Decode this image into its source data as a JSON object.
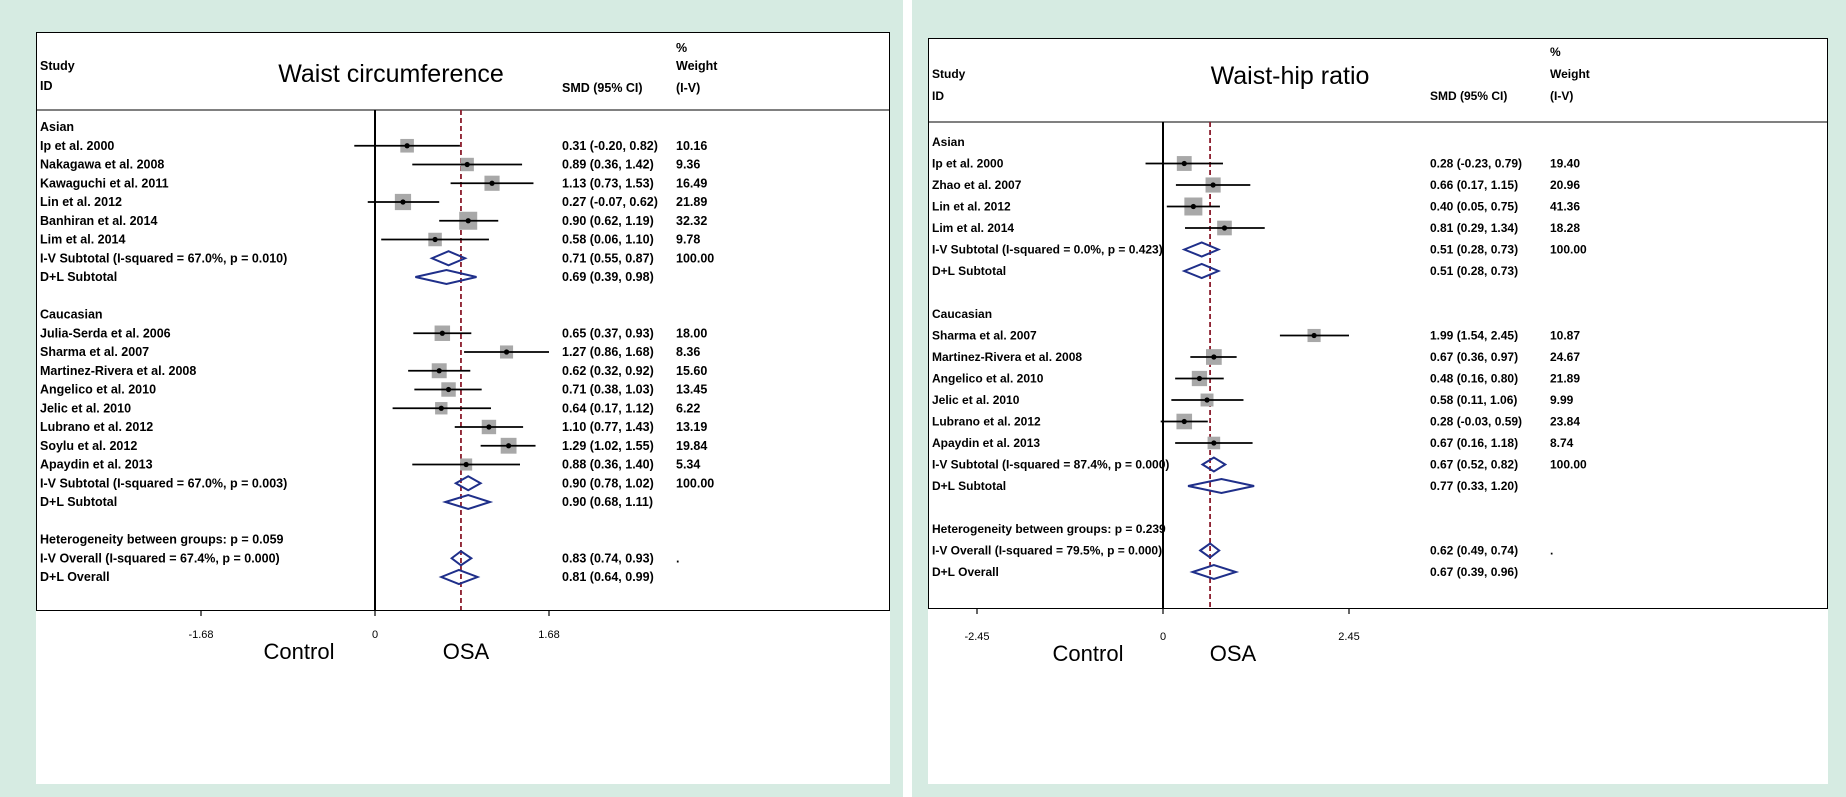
{
  "chart_data": [
    {
      "type": "forest",
      "title": "Waist circumference",
      "col_study": [
        "Study",
        "ID"
      ],
      "col_smd": "SMD (95% CI)",
      "col_weight": [
        "%",
        "Weight",
        "(I-V)"
      ],
      "xlim": [
        -1.68,
        1.68
      ],
      "ref_line": 0.83,
      "x_ticks": [
        {
          "value": -1.68,
          "label": "-1.68"
        },
        {
          "value": 0,
          "label": "0"
        },
        {
          "value": 1.68,
          "label": "1.68"
        }
      ],
      "side_labels": {
        "left": "Control",
        "right": "OSA"
      },
      "rows": [
        {
          "kind": "header",
          "label": "Asian"
        },
        {
          "kind": "study",
          "label": "Ip et al. 2000",
          "est": 0.31,
          "lo": -0.2,
          "hi": 0.82,
          "ci": "0.31 (-0.20, 0.82)",
          "weight": "10.16"
        },
        {
          "kind": "study",
          "label": "Nakagawa et al. 2008",
          "est": 0.89,
          "lo": 0.36,
          "hi": 1.42,
          "ci": "0.89 (0.36, 1.42)",
          "weight": "9.36"
        },
        {
          "kind": "study",
          "label": "Kawaguchi et al. 2011",
          "est": 1.13,
          "lo": 0.73,
          "hi": 1.53,
          "ci": "1.13 (0.73, 1.53)",
          "weight": "16.49"
        },
        {
          "kind": "study",
          "label": "Lin et al. 2012",
          "est": 0.27,
          "lo": -0.07,
          "hi": 0.62,
          "ci": "0.27 (-0.07, 0.62)",
          "weight": "21.89"
        },
        {
          "kind": "study",
          "label": "Banhiran et al. 2014",
          "est": 0.9,
          "lo": 0.62,
          "hi": 1.19,
          "ci": "0.90 (0.62, 1.19)",
          "weight": "32.32"
        },
        {
          "kind": "study",
          "label": "Lim et al. 2014",
          "est": 0.58,
          "lo": 0.06,
          "hi": 1.1,
          "ci": "0.58 (0.06, 1.10)",
          "weight": "9.78"
        },
        {
          "kind": "pooled",
          "label": "I-V Subtotal  (I-squared = 67.0%, p = 0.010)",
          "est": 0.71,
          "lo": 0.55,
          "hi": 0.87,
          "ci": "0.71 (0.55, 0.87)",
          "weight": "100.00"
        },
        {
          "kind": "pooled",
          "label": "D+L Subtotal",
          "est": 0.69,
          "lo": 0.39,
          "hi": 0.98,
          "ci": "0.69 (0.39, 0.98)",
          "weight": ""
        },
        {
          "kind": "gap"
        },
        {
          "kind": "header",
          "label": "Caucasian"
        },
        {
          "kind": "study",
          "label": "Julia-Serda et al. 2006",
          "est": 0.65,
          "lo": 0.37,
          "hi": 0.93,
          "ci": "0.65 (0.37, 0.93)",
          "weight": "18.00"
        },
        {
          "kind": "study",
          "label": "Sharma et al. 2007",
          "est": 1.27,
          "lo": 0.86,
          "hi": 1.68,
          "ci": "1.27 (0.86, 1.68)",
          "weight": "8.36"
        },
        {
          "kind": "study",
          "label": "Martinez-Rivera et al. 2008",
          "est": 0.62,
          "lo": 0.32,
          "hi": 0.92,
          "ci": "0.62 (0.32, 0.92)",
          "weight": "15.60"
        },
        {
          "kind": "study",
          "label": "Angelico et al. 2010",
          "est": 0.71,
          "lo": 0.38,
          "hi": 1.03,
          "ci": "0.71 (0.38, 1.03)",
          "weight": "13.45"
        },
        {
          "kind": "study",
          "label": "Jelic et al. 2010",
          "est": 0.64,
          "lo": 0.17,
          "hi": 1.12,
          "ci": "0.64 (0.17, 1.12)",
          "weight": "6.22"
        },
        {
          "kind": "study",
          "label": "Lubrano et al. 2012",
          "est": 1.1,
          "lo": 0.77,
          "hi": 1.43,
          "ci": "1.10 (0.77, 1.43)",
          "weight": "13.19"
        },
        {
          "kind": "study",
          "label": "Soylu et al. 2012",
          "est": 1.29,
          "lo": 1.02,
          "hi": 1.55,
          "ci": "1.29 (1.02, 1.55)",
          "weight": "19.84"
        },
        {
          "kind": "study",
          "label": "Apaydin et al. 2013",
          "est": 0.88,
          "lo": 0.36,
          "hi": 1.4,
          "ci": "0.88 (0.36, 1.40)",
          "weight": "5.34"
        },
        {
          "kind": "pooled",
          "label": "I-V Subtotal  (I-squared = 67.0%, p = 0.003)",
          "est": 0.9,
          "lo": 0.78,
          "hi": 1.02,
          "ci": "0.90 (0.78, 1.02)",
          "weight": "100.00"
        },
        {
          "kind": "pooled",
          "label": "D+L Subtotal",
          "est": 0.9,
          "lo": 0.68,
          "hi": 1.11,
          "ci": "0.90 (0.68, 1.11)",
          "weight": ""
        },
        {
          "kind": "gap"
        },
        {
          "kind": "header",
          "label": "Heterogeneity between groups: p = 0.059"
        },
        {
          "kind": "pooled",
          "label": "I-V Overall  (I-squared = 67.4%, p = 0.000)",
          "est": 0.83,
          "lo": 0.74,
          "hi": 0.93,
          "ci": "0.83 (0.74, 0.93)",
          "weight": "."
        },
        {
          "kind": "pooled",
          "label": "D+L Overall",
          "est": 0.81,
          "lo": 0.64,
          "hi": 0.99,
          "ci": "0.81 (0.64, 0.99)",
          "weight": ""
        }
      ]
    },
    {
      "type": "forest",
      "title": "Waist-hip ratio",
      "col_study": [
        "Study",
        "ID"
      ],
      "col_smd": "SMD (95% CI)",
      "col_weight": [
        "%",
        "Weight",
        "(I-V)"
      ],
      "xlim": [
        -2.45,
        2.45
      ],
      "ref_line": 0.62,
      "x_ticks": [
        {
          "value": -2.45,
          "label": "-2.45"
        },
        {
          "value": 0,
          "label": "0"
        },
        {
          "value": 2.45,
          "label": "2.45"
        }
      ],
      "side_labels": {
        "left": "Control",
        "right": "OSA"
      },
      "rows": [
        {
          "kind": "header",
          "label": "Asian"
        },
        {
          "kind": "study",
          "label": "Ip et al. 2000",
          "est": 0.28,
          "lo": -0.23,
          "hi": 0.79,
          "ci": "0.28 (-0.23, 0.79)",
          "weight": "19.40"
        },
        {
          "kind": "study",
          "label": "Zhao et al. 2007",
          "est": 0.66,
          "lo": 0.17,
          "hi": 1.15,
          "ci": "0.66 (0.17, 1.15)",
          "weight": "20.96"
        },
        {
          "kind": "study",
          "label": "Lin et al. 2012",
          "est": 0.4,
          "lo": 0.05,
          "hi": 0.75,
          "ci": "0.40 (0.05, 0.75)",
          "weight": "41.36"
        },
        {
          "kind": "study",
          "label": "Lim et al. 2014",
          "est": 0.81,
          "lo": 0.29,
          "hi": 1.34,
          "ci": "0.81 (0.29, 1.34)",
          "weight": "18.28"
        },
        {
          "kind": "pooled",
          "label": "I-V Subtotal  (I-squared = 0.0%, p = 0.423)",
          "est": 0.51,
          "lo": 0.28,
          "hi": 0.73,
          "ci": "0.51 (0.28, 0.73)",
          "weight": "100.00"
        },
        {
          "kind": "pooled",
          "label": "D+L Subtotal",
          "est": 0.51,
          "lo": 0.28,
          "hi": 0.73,
          "ci": "0.51 (0.28, 0.73)",
          "weight": ""
        },
        {
          "kind": "gap"
        },
        {
          "kind": "header",
          "label": "Caucasian"
        },
        {
          "kind": "study",
          "label": "Sharma et al. 2007",
          "est": 1.99,
          "lo": 1.54,
          "hi": 2.45,
          "ci": "1.99 (1.54, 2.45)",
          "weight": "10.87"
        },
        {
          "kind": "study",
          "label": "Martinez-Rivera et al. 2008",
          "est": 0.67,
          "lo": 0.36,
          "hi": 0.97,
          "ci": "0.67 (0.36, 0.97)",
          "weight": "24.67"
        },
        {
          "kind": "study",
          "label": "Angelico et al. 2010",
          "est": 0.48,
          "lo": 0.16,
          "hi": 0.8,
          "ci": "0.48 (0.16, 0.80)",
          "weight": "21.89"
        },
        {
          "kind": "study",
          "label": "Jelic et al. 2010",
          "est": 0.58,
          "lo": 0.11,
          "hi": 1.06,
          "ci": "0.58 (0.11, 1.06)",
          "weight": "9.99"
        },
        {
          "kind": "study",
          "label": "Lubrano et al. 2012",
          "est": 0.28,
          "lo": -0.03,
          "hi": 0.59,
          "ci": "0.28 (-0.03, 0.59)",
          "weight": "23.84"
        },
        {
          "kind": "study",
          "label": "Apaydin et al. 2013",
          "est": 0.67,
          "lo": 0.16,
          "hi": 1.18,
          "ci": "0.67 (0.16, 1.18)",
          "weight": "8.74"
        },
        {
          "kind": "pooled",
          "label": "I-V Subtotal  (I-squared = 87.4%, p = 0.000)",
          "est": 0.67,
          "lo": 0.52,
          "hi": 0.82,
          "ci": "0.67 (0.52, 0.82)",
          "weight": "100.00"
        },
        {
          "kind": "pooled",
          "label": "D+L Subtotal",
          "est": 0.77,
          "lo": 0.33,
          "hi": 1.2,
          "ci": "0.77 (0.33, 1.20)",
          "weight": ""
        },
        {
          "kind": "gap"
        },
        {
          "kind": "header",
          "label": "Heterogeneity between groups: p = 0.239"
        },
        {
          "kind": "pooled",
          "label": "I-V Overall  (I-squared = 79.5%, p = 0.000)",
          "est": 0.62,
          "lo": 0.49,
          "hi": 0.74,
          "ci": "0.62 (0.49, 0.74)",
          "weight": "."
        },
        {
          "kind": "pooled",
          "label": "D+L Overall",
          "est": 0.67,
          "lo": 0.39,
          "hi": 0.96,
          "ci": "0.67 (0.39, 0.96)",
          "weight": ""
        }
      ]
    }
  ]
}
